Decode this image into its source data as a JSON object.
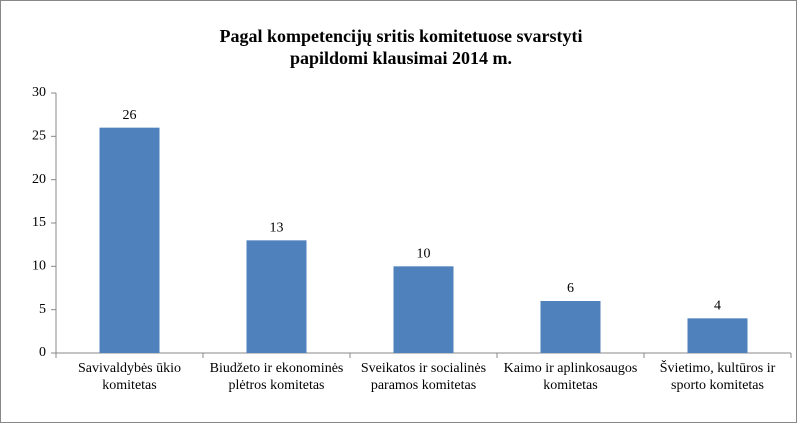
{
  "chart_data": {
    "type": "bar",
    "title": "Pagal kompetencijų sritis komitetuose svarstyti papildomi klausimai 2014 m.",
    "categories": [
      "Savivaldybės ūkio komitetas",
      "Biudžeto ir ekonominės plėtros komitetas",
      "Sveikatos ir socialinės paramos komitetas",
      "Kaimo ir aplinkosaugos komitetas",
      "Švietimo, kultūros ir sporto komitetas"
    ],
    "values": [
      26,
      13,
      10,
      6,
      4
    ],
    "color": "#4f81bd",
    "ylim": [
      0,
      30
    ],
    "yticks": [
      0,
      5,
      10,
      15,
      20,
      25,
      30
    ],
    "grid": false
  }
}
